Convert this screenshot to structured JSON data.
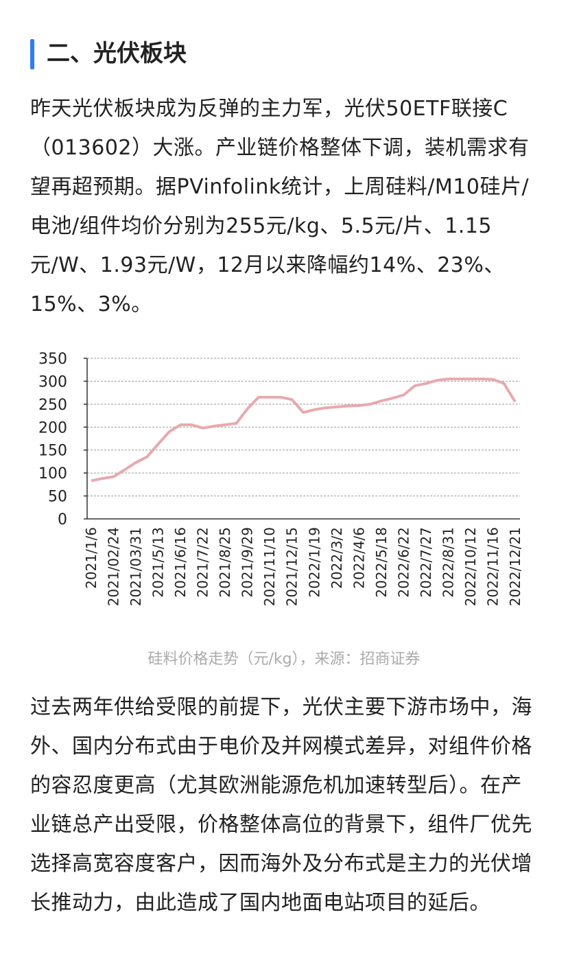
{
  "heading": "二、光伏板块",
  "paragraphs": [
    "昨天光伏板块成为反弹的主力军，光伏50ETF联接C（013602）大涨。产业链价格整体下调，装机需求有望再超预期。据PVinfolink统计，上周硅料/M10硅片/电池/组件均价分别为255元/kg、5.5元/片、1.15元/W、1.93元/W，12月以来降幅约14%、23%、15%、3%。",
    "过去两年供给受限的前提下，光伏主要下游市场中，海外、国内分布式由于电价及并网模式差异，对组件价格的容忍度更高（尤其欧洲能源危机加速转型后）。在产业链总产出受限，价格整体高位的背景下，组件厂优先选择高宽容度客户，因而海外及分布式是主力的光伏增长推动力，由此造成了国内地面电站项目的延后。"
  ],
  "caption": "硅料价格走势（元/kg），来源：招商证券",
  "chart_data": {
    "type": "line",
    "categories": [
      "2021/1/6",
      null,
      "2021/02/24",
      null,
      "2021/03/31",
      null,
      "2021/5/13",
      null,
      "2021/6/16",
      null,
      "2021/7/22",
      null,
      "2021/8/25",
      null,
      "2021/9/29",
      null,
      "2021/11/10",
      null,
      "2021/12/15",
      null,
      "2022/1/19",
      null,
      "2022/3/2",
      null,
      "2022/4/6",
      null,
      "2022/5/18",
      null,
      "2022/6/22",
      null,
      "2022/7/27",
      null,
      "2022/8/31",
      null,
      "2022/10/12",
      null,
      "2022/11/16",
      null,
      "2022/12/21"
    ],
    "values": [
      83,
      88,
      92,
      107,
      123,
      135,
      163,
      190,
      205,
      205,
      198,
      202,
      205,
      208,
      240,
      265,
      265,
      265,
      260,
      232,
      238,
      242,
      244,
      246,
      247,
      250,
      257,
      263,
      270,
      290,
      295,
      302,
      305,
      305,
      305,
      305,
      304,
      295,
      255
    ],
    "color": "#e8a9ae",
    "ylim": [
      0,
      350
    ],
    "yticks": [
      0,
      50,
      100,
      150,
      200,
      250,
      300,
      350
    ],
    "grid": true
  }
}
